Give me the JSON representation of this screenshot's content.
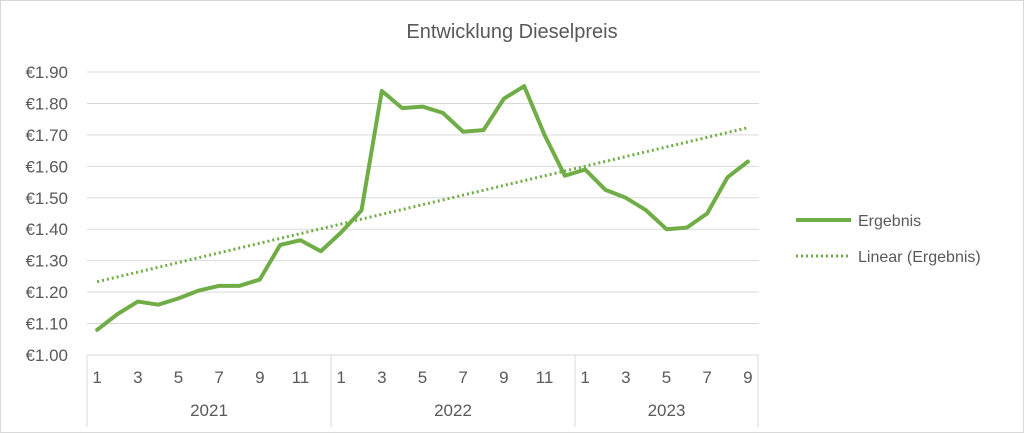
{
  "chart_data": {
    "type": "line",
    "title": "Entwicklung Dieselpreis",
    "xlabel": "",
    "ylabel": "",
    "ylim": [
      1.0,
      1.9
    ],
    "y_ticks": [
      "€1.00",
      "€1.10",
      "€1.20",
      "€1.30",
      "€1.40",
      "€1.50",
      "€1.60",
      "€1.70",
      "€1.80",
      "€1.90"
    ],
    "grid": true,
    "legend_position": "right",
    "years": [
      {
        "label": "2021",
        "months": 12
      },
      {
        "label": "2022",
        "months": 12
      },
      {
        "label": "2023",
        "months": 9
      }
    ],
    "month_labels": [
      "1",
      "",
      "3",
      "",
      "5",
      "",
      "7",
      "",
      "9",
      "",
      "11",
      "",
      "1",
      "",
      "3",
      "",
      "5",
      "",
      "7",
      "",
      "9",
      "",
      "11",
      "",
      "1",
      "",
      "3",
      "",
      "5",
      "",
      "7",
      "",
      "9"
    ],
    "series": [
      {
        "name": "Ergebnis",
        "color": "#70ad47",
        "values": [
          1.08,
          1.13,
          1.17,
          1.16,
          1.18,
          1.205,
          1.22,
          1.22,
          1.24,
          1.35,
          1.365,
          1.33,
          1.39,
          1.46,
          1.84,
          1.785,
          1.79,
          1.77,
          1.71,
          1.715,
          1.815,
          1.855,
          1.7,
          1.57,
          1.59,
          1.525,
          1.5,
          1.46,
          1.4,
          1.405,
          1.45,
          1.565,
          1.615
        ]
      },
      {
        "name": "Linear (Ergebnis)",
        "color": "#70ad47",
        "style": "dotted",
        "trend_start": 1.233,
        "trend_end": 1.723
      }
    ]
  },
  "legend": {
    "series_label": "Ergebnis",
    "trend_label": "Linear (Ergebnis)"
  }
}
